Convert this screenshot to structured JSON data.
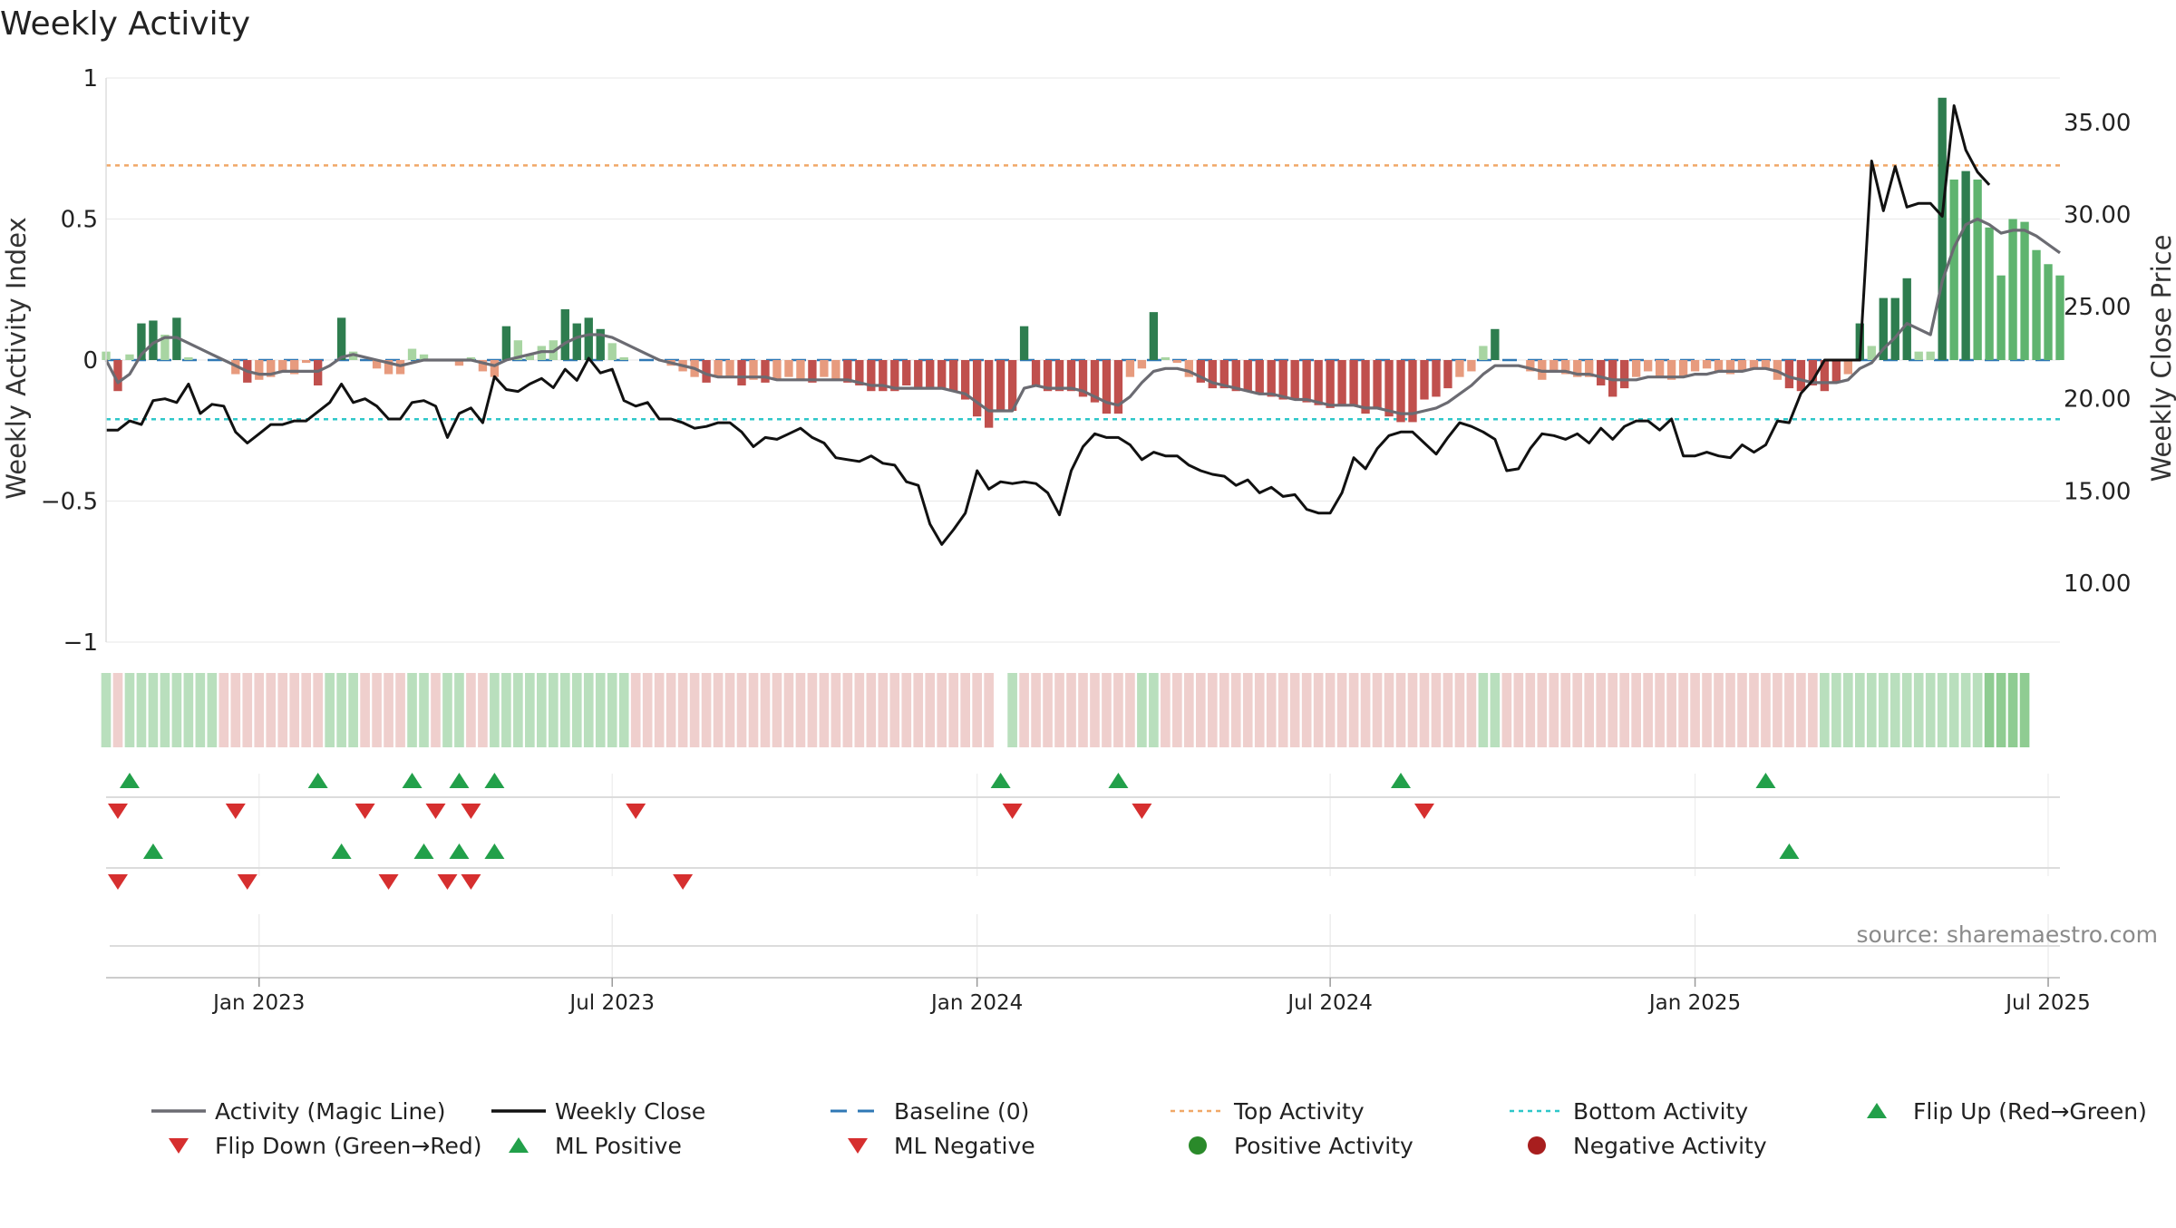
{
  "chart_data": {
    "type": "bar",
    "title": "Weekly Activity",
    "ylabel_left": "Weekly Activity Index",
    "ylabel_right": "Weekly Close Price",
    "source": "source: sharemaestro.com",
    "left_axis": {
      "ylim": [
        -1.0,
        1.0
      ],
      "ticks": [
        1,
        0.5,
        0,
        -0.5,
        -1
      ],
      "tick_labels": [
        "1",
        "0.5",
        "0",
        "−0.5",
        "−1"
      ]
    },
    "right_axis": {
      "ylim": [
        6.8,
        37.4
      ],
      "ticks": [
        35,
        30,
        25,
        20,
        15,
        10
      ],
      "tick_labels": [
        "35.00",
        "30.00",
        "25.00",
        "20.00",
        "15.00",
        "10.00"
      ]
    },
    "x_ticks": {
      "indices": [
        13,
        43,
        74,
        104,
        135,
        165
      ],
      "labels": [
        "Jan 2023",
        "Jul 2023",
        "Jan 2024",
        "Jul 2024",
        "Jan 2025",
        "Jul 2025"
      ]
    },
    "top_activity": 0.69,
    "bottom_activity": -0.21,
    "baseline": 0,
    "activity": [
      0.03,
      -0.11,
      0.02,
      0.13,
      0.14,
      0.09,
      0.15,
      0.01,
      0,
      0,
      0,
      -0.05,
      -0.08,
      -0.07,
      -0.06,
      -0.04,
      -0.05,
      -0.01,
      -0.09,
      0,
      0.15,
      0.03,
      0,
      -0.03,
      -0.05,
      -0.05,
      0.04,
      0.02,
      0,
      0,
      -0.02,
      0.01,
      -0.04,
      -0.06,
      0.12,
      0.07,
      0.02,
      0.05,
      0.07,
      0.18,
      0.13,
      0.15,
      0.11,
      0.06,
      0.01,
      0,
      0,
      0,
      -0.02,
      -0.04,
      -0.06,
      -0.08,
      -0.06,
      -0.06,
      -0.09,
      -0.07,
      -0.08,
      -0.07,
      -0.06,
      -0.07,
      -0.08,
      -0.06,
      -0.07,
      -0.08,
      -0.09,
      -0.11,
      -0.11,
      -0.11,
      -0.09,
      -0.1,
      -0.1,
      -0.1,
      -0.11,
      -0.14,
      -0.2,
      -0.24,
      -0.18,
      -0.18,
      0.12,
      -0.09,
      -0.11,
      -0.11,
      -0.11,
      -0.13,
      -0.15,
      -0.19,
      -0.19,
      -0.06,
      -0.03,
      0.17,
      0.01,
      -0.01,
      -0.06,
      -0.08,
      -0.1,
      -0.1,
      -0.11,
      -0.11,
      -0.12,
      -0.13,
      -0.14,
      -0.14,
      -0.15,
      -0.16,
      -0.17,
      -0.16,
      -0.16,
      -0.19,
      -0.17,
      -0.2,
      -0.22,
      -0.22,
      -0.14,
      -0.13,
      -0.1,
      -0.06,
      -0.04,
      0.05,
      0.11,
      0,
      0,
      -0.04,
      -0.07,
      -0.04,
      -0.05,
      -0.06,
      -0.06,
      -0.09,
      -0.13,
      -0.1,
      -0.06,
      -0.04,
      -0.06,
      -0.07,
      -0.06,
      -0.04,
      -0.03,
      -0.04,
      -0.05,
      -0.04,
      -0.03,
      -0.03,
      -0.07,
      -0.1,
      -0.11,
      -0.09,
      -0.11,
      -0.08,
      -0.05,
      0.13,
      0.05,
      0.22,
      0.22,
      0.29,
      0.03,
      0.03,
      0.93,
      0.64,
      0.67,
      0.64,
      0.47,
      0.3,
      0.5,
      0.49,
      0.39,
      0.34,
      0.3
    ],
    "magic_line": [
      0,
      -0.08,
      -0.05,
      0.02,
      0.06,
      0.08,
      0.08,
      0.06,
      0.04,
      0.02,
      0,
      -0.02,
      -0.04,
      -0.05,
      -0.05,
      -0.04,
      -0.04,
      -0.04,
      -0.04,
      -0.02,
      0.01,
      0.02,
      0.01,
      0,
      -0.01,
      -0.02,
      -0.01,
      0,
      0,
      0,
      0,
      0,
      -0.01,
      -0.02,
      0,
      0.01,
      0.02,
      0.03,
      0.03,
      0.06,
      0.08,
      0.09,
      0.09,
      0.08,
      0.06,
      0.04,
      0.02,
      0,
      -0.01,
      -0.02,
      -0.03,
      -0.05,
      -0.06,
      -0.06,
      -0.06,
      -0.06,
      -0.06,
      -0.07,
      -0.07,
      -0.07,
      -0.07,
      -0.07,
      -0.07,
      -0.07,
      -0.08,
      -0.09,
      -0.09,
      -0.1,
      -0.1,
      -0.1,
      -0.1,
      -0.1,
      -0.11,
      -0.12,
      -0.15,
      -0.18,
      -0.18,
      -0.18,
      -0.1,
      -0.09,
      -0.1,
      -0.1,
      -0.1,
      -0.11,
      -0.13,
      -0.15,
      -0.16,
      -0.13,
      -0.08,
      -0.04,
      -0.03,
      -0.03,
      -0.04,
      -0.06,
      -0.08,
      -0.09,
      -0.1,
      -0.11,
      -0.12,
      -0.12,
      -0.13,
      -0.14,
      -0.14,
      -0.15,
      -0.16,
      -0.16,
      -0.16,
      -0.17,
      -0.17,
      -0.18,
      -0.19,
      -0.19,
      -0.18,
      -0.17,
      -0.15,
      -0.12,
      -0.09,
      -0.05,
      -0.02,
      -0.02,
      -0.02,
      -0.03,
      -0.04,
      -0.04,
      -0.04,
      -0.05,
      -0.05,
      -0.06,
      -0.07,
      -0.07,
      -0.07,
      -0.06,
      -0.06,
      -0.06,
      -0.06,
      -0.05,
      -0.05,
      -0.04,
      -0.04,
      -0.04,
      -0.03,
      -0.03,
      -0.04,
      -0.06,
      -0.07,
      -0.08,
      -0.08,
      -0.08,
      -0.07,
      -0.03,
      -0.01,
      0.04,
      0.08,
      0.13,
      0.11,
      0.09,
      0.28,
      0.4,
      0.48,
      0.5,
      0.48,
      0.45,
      0.46,
      0.46,
      0.44,
      0.41,
      0.38
    ],
    "weekly_close": [
      18.3,
      18.3,
      18.8,
      18.6,
      19.9,
      20,
      19.8,
      20.8,
      19.2,
      19.7,
      19.6,
      18.2,
      17.6,
      18.1,
      18.6,
      18.6,
      18.8,
      18.8,
      19.3,
      19.8,
      20.8,
      19.8,
      20,
      19.6,
      18.9,
      18.9,
      19.8,
      19.9,
      19.6,
      17.9,
      19.2,
      19.5,
      18.7,
      21.2,
      20.5,
      20.4,
      20.8,
      21.1,
      20.6,
      21.6,
      21,
      22.2,
      21.4,
      21.6,
      19.9,
      19.6,
      19.8,
      18.9,
      18.9,
      18.7,
      18.4,
      18.5,
      18.7,
      18.7,
      18.2,
      17.4,
      17.9,
      17.8,
      18.1,
      18.4,
      17.9,
      17.6,
      16.8,
      16.7,
      16.6,
      16.9,
      16.5,
      16.4,
      15.5,
      15.3,
      13.2,
      12.1,
      12.9,
      13.8,
      16.1,
      15.1,
      15.5,
      15.4,
      15.5,
      15.4,
      14.9,
      13.7,
      16.1,
      17.4,
      18.1,
      17.9,
      17.9,
      17.5,
      16.7,
      17.1,
      16.9,
      16.9,
      16.4,
      16.1,
      15.9,
      15.8,
      15.3,
      15.6,
      14.9,
      15.2,
      14.7,
      14.8,
      14,
      13.8,
      13.8,
      14.9,
      16.8,
      16.2,
      17.3,
      18,
      18.2,
      18.2,
      17.6,
      17,
      17.9,
      18.7,
      18.5,
      18.2,
      17.8,
      16.1,
      16.2,
      17.3,
      18.1,
      18,
      17.8,
      18.1,
      17.6,
      18.4,
      17.8,
      18.5,
      18.8,
      18.8,
      18.3,
      18.9,
      16.9,
      16.9,
      17.1,
      16.9,
      16.8,
      17.5,
      17.1,
      17.5,
      18.8,
      18.7,
      20.3,
      21,
      22.1,
      22.1,
      22.1,
      22.1,
      32.9,
      30.2,
      32.6,
      30.4,
      30.6,
      30.6,
      29.9,
      35.9,
      33.5,
      32.3,
      31.6
    ],
    "state_strip": [
      "pos",
      "neg",
      "pos",
      "pos",
      "pos",
      "pos",
      "pos",
      "pos",
      "pos",
      "pos",
      "neg",
      "neg",
      "neg",
      "neg",
      "neg",
      "neg",
      "neg",
      "neg",
      "neg",
      "pos",
      "pos",
      "pos",
      "neg",
      "neg",
      "neg",
      "neg",
      "pos",
      "pos",
      "neg",
      "pos",
      "pos",
      "neg",
      "neg",
      "pos",
      "pos",
      "pos",
      "pos",
      "pos",
      "pos",
      "pos",
      "pos",
      "pos",
      "pos",
      "pos",
      "pos",
      "neg",
      "neg",
      "neg",
      "neg",
      "neg",
      "neg",
      "neg",
      "neg",
      "neg",
      "neg",
      "neg",
      "neg",
      "neg",
      "neg",
      "neg",
      "neg",
      "neg",
      "neg",
      "neg",
      "neg",
      "neg",
      "neg",
      "neg",
      "neg",
      "neg",
      "neg",
      "neg",
      "neg",
      "neg",
      "neg",
      "neg",
      "gap",
      "pos",
      "neg",
      "neg",
      "neg",
      "neg",
      "neg",
      "neg",
      "neg",
      "neg",
      "neg",
      "neg",
      "pos",
      "pos",
      "neg",
      "neg",
      "neg",
      "neg",
      "neg",
      "neg",
      "neg",
      "neg",
      "neg",
      "neg",
      "neg",
      "neg",
      "neg",
      "neg",
      "neg",
      "neg",
      "neg",
      "neg",
      "neg",
      "neg",
      "neg",
      "neg",
      "neg",
      "neg",
      "neg",
      "neg",
      "neg",
      "pos",
      "pos",
      "neg",
      "neg",
      "neg",
      "neg",
      "neg",
      "neg",
      "neg",
      "neg",
      "neg",
      "neg",
      "neg",
      "neg",
      "neg",
      "neg",
      "neg",
      "neg",
      "neg",
      "neg",
      "neg",
      "neg",
      "neg",
      "neg",
      "neg",
      "neg",
      "neg",
      "neg",
      "neg",
      "pos",
      "pos",
      "pos",
      "pos",
      "pos",
      "pos",
      "pos",
      "pos",
      "pos",
      "pos",
      "pos",
      "pos",
      "pos",
      "pos",
      "pos",
      "pos",
      "pos",
      "pos"
    ],
    "flip_up": [
      2,
      18,
      26,
      30,
      33,
      76,
      86,
      110,
      141
    ],
    "flip_down": [
      1,
      11,
      22,
      28,
      31,
      45,
      77,
      88,
      112
    ],
    "ml_positive": [
      4,
      20,
      27,
      30,
      33,
      143
    ],
    "ml_negative": [
      1,
      12,
      24,
      29,
      31,
      49
    ],
    "legend": [
      {
        "key": "magic",
        "label": "Activity (Magic Line)"
      },
      {
        "key": "close",
        "label": "Weekly Close"
      },
      {
        "key": "baseline",
        "label": "Baseline (0)"
      },
      {
        "key": "top",
        "label": "Top Activity"
      },
      {
        "key": "bottom",
        "label": "Bottom Activity"
      },
      {
        "key": "flipup",
        "label": "Flip Up (Red→Green)"
      },
      {
        "key": "flipdown",
        "label": "Flip Down (Green→Red)"
      },
      {
        "key": "mlpos",
        "label": "ML Positive"
      },
      {
        "key": "mlneg",
        "label": "ML Negative"
      },
      {
        "key": "posact",
        "label": "Positive Activity"
      },
      {
        "key": "negact",
        "label": "Negative Activity"
      }
    ],
    "colors": {
      "magic_line": "#6b6b72",
      "close": "#111111",
      "baseline": "#2f78b5",
      "top": "#f0a868",
      "bottom": "#2ec7c9",
      "pos_strong": "#2e7d4f",
      "pos_mid": "#5fb46f",
      "pos_light": "#a8d5a2",
      "neg_strong": "#c0504d",
      "neg_light": "#e79b7e",
      "strip_pos": "#b9dfbd",
      "strip_neg": "#efcfcd",
      "marker_up": "#22a04a",
      "marker_down": "#d62f2f",
      "positive_activity": "#2a8a2a",
      "negative_activity": "#a81e1e"
    }
  }
}
